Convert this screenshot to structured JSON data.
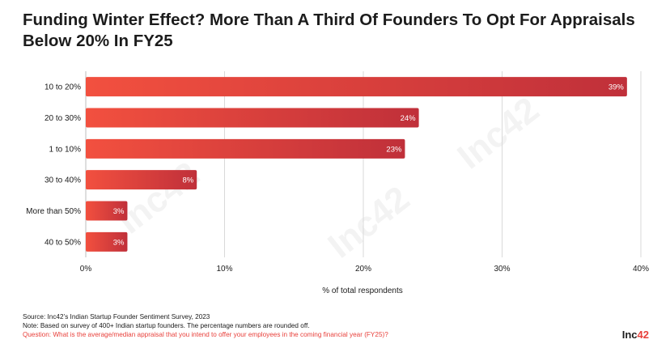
{
  "title": {
    "line1": "Funding Winter Effect? More Than A Third Of Founders To Opt For Appraisals",
    "line2": "Below 20% In FY25"
  },
  "chart_data": {
    "type": "bar",
    "orientation": "horizontal",
    "categories": [
      "10 to 20%",
      "20 to 30%",
      "1 to 10%",
      "30 to 40%",
      "More than 50%",
      "40 to 50%"
    ],
    "values": [
      39,
      24,
      23,
      8,
      3,
      3
    ],
    "data_labels": [
      "39%",
      "24%",
      "23%",
      "8%",
      "3%",
      "3%"
    ],
    "xlim": [
      0,
      40
    ],
    "xticks": [
      0,
      10,
      20,
      30,
      40
    ],
    "xtick_labels": [
      "0%",
      "10%",
      "20%",
      "30%",
      "40%"
    ],
    "xlabel": "% of total respondents",
    "grid": true,
    "colors": {
      "bar_start": "#f2503f",
      "bar_end": "#c0303a",
      "grid": "#d9d9d9"
    }
  },
  "footer": {
    "source": "Source: Inc42’s Indian Startup Founder Sentiment Survey, 2023",
    "note": "Note: Based on survey of 400+ Indian startup founders. The percentage numbers are rounded off.",
    "question": "Question: What is the average/median appraisal that you intend to offer your employees in the coming financial year (FY25)?"
  },
  "logo": {
    "text": "Inc",
    "accent": "42"
  }
}
